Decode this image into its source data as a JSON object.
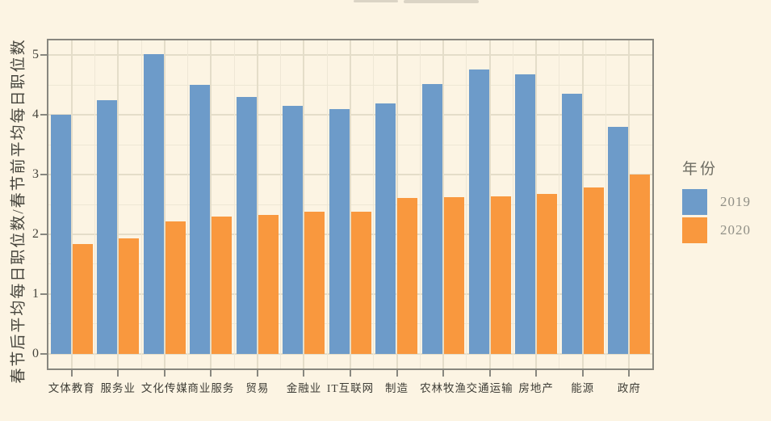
{
  "figure": {
    "background": "#FCF4E3"
  },
  "chart_data": {
    "type": "bar",
    "title": "",
    "xlabel": "",
    "ylabel": "春节后平均每日职位数/春节前平均每日职位数",
    "categories": [
      "文体教育",
      "服务业",
      "文化传媒",
      "商业服务",
      "贸易",
      "金融业",
      "IT互联网",
      "制造",
      "农林牧渔",
      "交通运输",
      "房地产",
      "能源",
      "政府"
    ],
    "series": [
      {
        "name": "2019",
        "color": "#6D9BC9",
        "values": [
          4.0,
          4.25,
          5.02,
          4.5,
          4.3,
          4.15,
          4.1,
          4.2,
          4.52,
          4.76,
          4.68,
          4.35,
          3.8
        ]
      },
      {
        "name": "2020",
        "color": "#F9983E",
        "values": [
          1.84,
          1.93,
          2.21,
          2.3,
          2.32,
          2.38,
          2.38,
          2.61,
          2.62,
          2.64,
          2.68,
          2.78,
          3.0
        ]
      }
    ],
    "yticks": [
      0,
      1,
      2,
      3,
      4,
      5
    ],
    "ylim": [
      -0.25,
      5.25
    ],
    "grid": "major-and-minor, horizontal and vertical",
    "legend": {
      "title": "年份",
      "position": "right",
      "entries": [
        "2019",
        "2020"
      ]
    }
  }
}
